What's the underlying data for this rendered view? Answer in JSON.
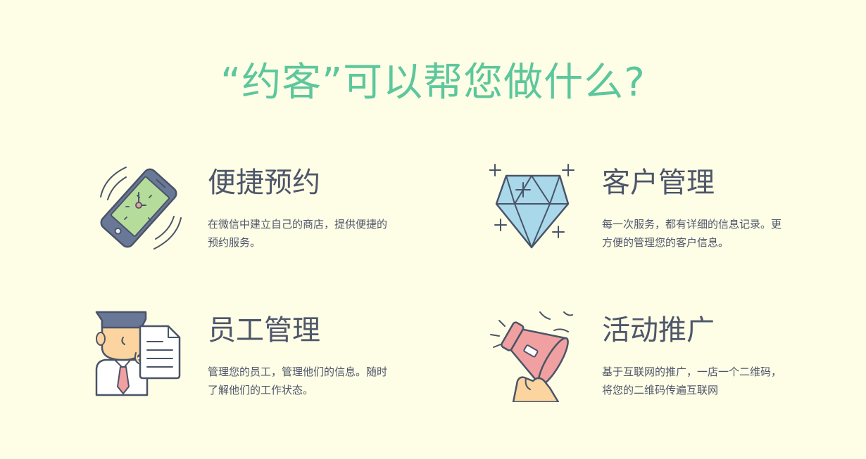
{
  "page": {
    "title": "“约客”可以帮您做什么?"
  },
  "features": [
    {
      "title": "便捷预约",
      "description": "在微信中建立自己的商店，提供便捷的预约服务。",
      "icon": "phone-clock-icon"
    },
    {
      "title": "客户管理",
      "description": "每一次服务，都有详细的信息记录。更方便的管理您的客户信息。",
      "icon": "diamond-icon"
    },
    {
      "title": "员工管理",
      "description": "管理您的员工，管理他们的信息。随时了解他们的工作状态。",
      "icon": "staff-document-icon"
    },
    {
      "title": "活动推广",
      "description": "基于互联网的推广，一店一个二维码，将您的二维码传遍互联网",
      "icon": "megaphone-icon"
    }
  ],
  "colors": {
    "background": "#fefde6",
    "title": "#5cc79c",
    "text": "#4e566a",
    "outline": "#4a5468",
    "phone_screen": "#b5dc9a",
    "diamond": "#a8d8ea",
    "megaphone": "#f0a0a0",
    "skin": "#fbd49f",
    "tie": "#f0a0a0"
  }
}
